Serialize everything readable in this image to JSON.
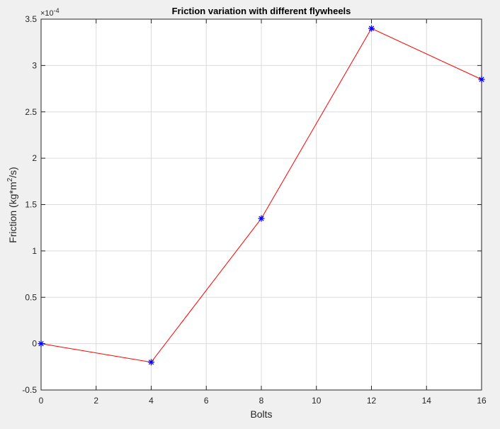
{
  "chart_data": {
    "type": "line",
    "title": "Friction variation with different flywheels",
    "xlabel": "Bolts",
    "ylabel_main": "Friction (kg*m",
    "ylabel_sup": "2",
    "ylabel_tail": "/s)",
    "exponent_base": "×10",
    "exponent_power": "-4",
    "xlim": [
      0,
      16
    ],
    "ylim": [
      -0.5,
      3.5
    ],
    "x_ticks": [
      0,
      2,
      4,
      6,
      8,
      10,
      12,
      14,
      16
    ],
    "x_tick_labels": [
      "0",
      "2",
      "4",
      "6",
      "8",
      "10",
      "12",
      "14",
      "16"
    ],
    "y_ticks": [
      -0.5,
      0,
      0.5,
      1,
      1.5,
      2,
      2.5,
      3,
      3.5
    ],
    "y_tick_labels": [
      "-0.5",
      "0",
      "0.5",
      "1",
      "1.5",
      "2",
      "2.5",
      "3",
      "3.5"
    ],
    "grid": true,
    "series": [
      {
        "x": [
          0,
          4,
          8,
          12,
          16
        ],
        "y": [
          0,
          -0.2,
          1.35,
          3.4,
          2.85
        ],
        "line_color": "#ff0000",
        "marker": "asterisk",
        "marker_color": "#0000ff"
      }
    ]
  }
}
